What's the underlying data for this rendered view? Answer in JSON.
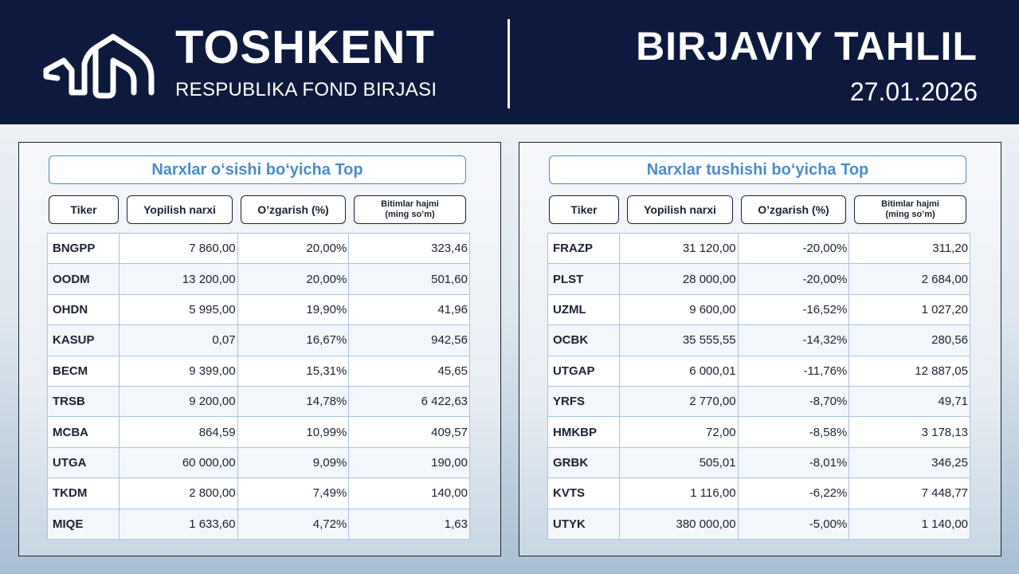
{
  "header": {
    "brand_title": "TOSHKENT",
    "brand_subtitle": "RESPUBLIKA FOND BIRJASI",
    "report_title": "BIRJAVIY TAHLIL",
    "report_date": "27.01.2026",
    "logo_icon": "exchange-logo-icon",
    "colors": {
      "header_bg": "#0d1a3d",
      "text": "#ffffff"
    }
  },
  "columns": {
    "ticker": "Tiker",
    "close_price": "Yopilish narxi",
    "change": "O’zgarish (%)",
    "volume_line1": "Bitimlar hajmi",
    "volume_line2": "(ming so’m)"
  },
  "gainers": {
    "title": "Narxlar o‘sishi bo‘yicha Top",
    "color": "#2a9a3a",
    "rows": [
      {
        "ticker": "BNGPP",
        "price": "7 860,00",
        "change": "20,00%",
        "volume": "323,46"
      },
      {
        "ticker": "OODM",
        "price": "13 200,00",
        "change": "20,00%",
        "volume": "501,60"
      },
      {
        "ticker": "OHDN",
        "price": "5 995,00",
        "change": "19,90%",
        "volume": "41,96"
      },
      {
        "ticker": "KASUP",
        "price": "0,07",
        "change": "16,67%",
        "volume": "942,56"
      },
      {
        "ticker": "BECM",
        "price": "9 399,00",
        "change": "15,31%",
        "volume": "45,65"
      },
      {
        "ticker": "TRSB",
        "price": "9 200,00",
        "change": "14,78%",
        "volume": "6 422,63"
      },
      {
        "ticker": "MCBA",
        "price": "864,59",
        "change": "10,99%",
        "volume": "409,57"
      },
      {
        "ticker": "UTGA",
        "price": "60 000,00",
        "change": "9,09%",
        "volume": "190,00"
      },
      {
        "ticker": "TKDM",
        "price": "2 800,00",
        "change": "7,49%",
        "volume": "140,00"
      },
      {
        "ticker": "MIQE",
        "price": "1 633,60",
        "change": "4,72%",
        "volume": "1,63"
      }
    ]
  },
  "losers": {
    "title": "Narxlar tushishi bo‘yicha Top",
    "color": "#e01b1b",
    "rows": [
      {
        "ticker": "FRAZP",
        "price": "31 120,00",
        "change": "-20,00%",
        "volume": "311,20"
      },
      {
        "ticker": "PLST",
        "price": "28 000,00",
        "change": "-20,00%",
        "volume": "2 684,00"
      },
      {
        "ticker": "UZML",
        "price": "9 600,00",
        "change": "-16,52%",
        "volume": "1 027,20"
      },
      {
        "ticker": "OCBK",
        "price": "35 555,55",
        "change": "-14,32%",
        "volume": "280,56"
      },
      {
        "ticker": "UTGAP",
        "price": "6 000,01",
        "change": "-11,76%",
        "volume": "12 887,05"
      },
      {
        "ticker": "YRFS",
        "price": "2 770,00",
        "change": "-8,70%",
        "volume": "49,71"
      },
      {
        "ticker": "HMKBP",
        "price": "72,00",
        "change": "-8,58%",
        "volume": "3 178,13"
      },
      {
        "ticker": "GRBK",
        "price": "505,01",
        "change": "-8,01%",
        "volume": "346,25"
      },
      {
        "ticker": "KVTS",
        "price": "1 116,00",
        "change": "-6,22%",
        "volume": "7 448,77"
      },
      {
        "ticker": "UTYK",
        "price": "380 000,00",
        "change": "-5,00%",
        "volume": "1 140,00"
      }
    ]
  }
}
